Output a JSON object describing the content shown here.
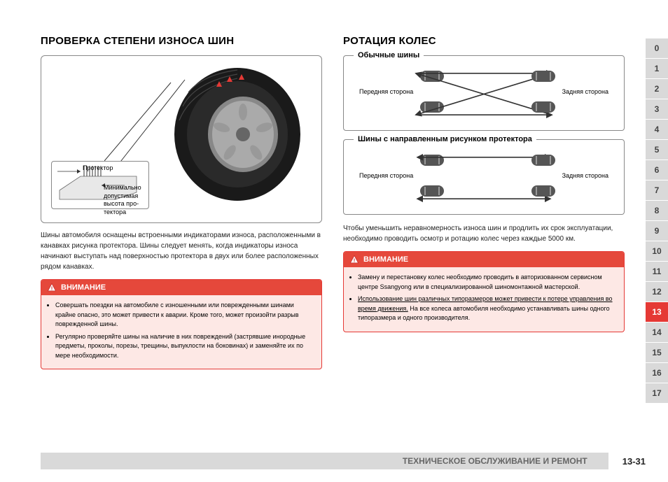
{
  "left": {
    "heading": "ПРОВЕРКА СТЕПЕНИ ИЗНОСА ШИН",
    "tread_label": "Протектор",
    "min_label": "Минимально допустимая высота про-тектора",
    "body": "Шины автомобиля оснащены встроенными индикаторами износа, расположенными в канавках рисунка протектора. Шины следует менять, когда индикаторы износа начинают выступать над поверхностью протектора в двух или более расположенных рядом канавках.",
    "warning_title": "ВНИМАНИЕ",
    "warning_items": [
      "Совершать поездки на автомобиле с изношенными или поврежденными шинами крайне опасно, это может привести к аварии. Кроме того, может произойти разрыв поврежденной шины.",
      "Регулярно проверяйте шины на наличие в них повреждений (застрявшие инородные предметы, проколы, порезы, трещины, выпуклости на боковинах) и заменяйте их по мере необходимости."
    ]
  },
  "right": {
    "heading": "РОТАЦИЯ КОЛЕС",
    "box1_title": "Обычные шины",
    "box2_title": "Шины с направленным рисунком протектора",
    "front_label": "Передняя сторона",
    "rear_label": "Задняя сторона",
    "body": "Чтобы уменьшить неравномерность износа шин и продлить их срок эксплуатации, необходимо проводить осмотр и ротацию колес через каждые 5000 км.",
    "warning_title": "ВНИМАНИЕ",
    "warning_item1": "Замену и перестановку колес необходимо проводить в авторизованном сервисном центре Ssangyong или в специализированной шиномонтажной мастерской.",
    "warning_item2a": "Использование шин различных типоразмеров может привести к потере управления во время движения.",
    "warning_item2b": " На все колеса автомобиля необходимо устанавливать шины одного типоразмера и одного производителя."
  },
  "tabs": [
    "0",
    "1",
    "2",
    "3",
    "4",
    "5",
    "6",
    "7",
    "8",
    "9",
    "10",
    "11",
    "12",
    "13",
    "14",
    "15",
    "16",
    "17"
  ],
  "active_tab": "13",
  "footer_title": "ТЕХНИЧЕСКОЕ ОБСЛУЖИВАНИЕ И РЕМОНТ",
  "footer_page": "13-31",
  "colors": {
    "red": "#e53935",
    "warn_bg": "#fde8e5",
    "gray": "#d9d9d9"
  }
}
